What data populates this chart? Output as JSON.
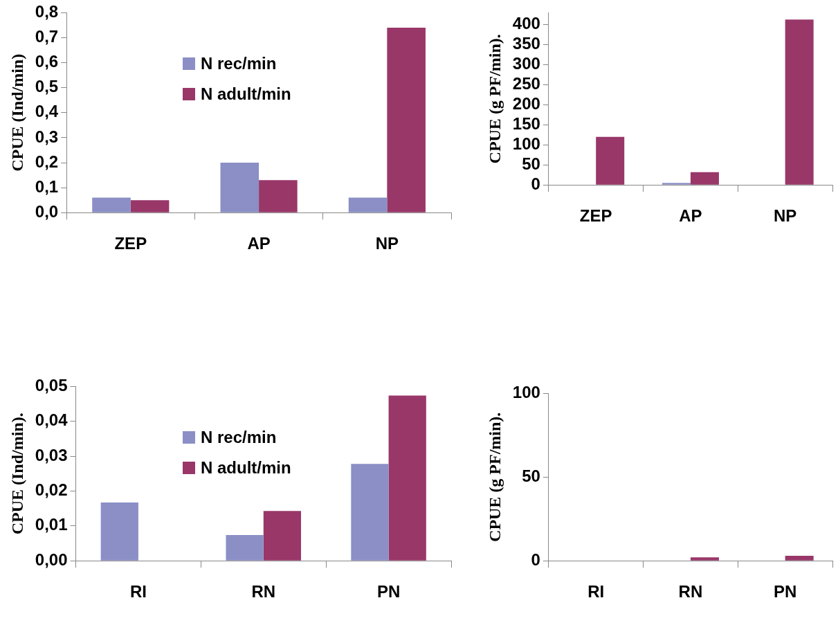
{
  "chart_data": [
    {
      "type": "bar",
      "ylabel": "CPUE (Ind/min)",
      "categories": [
        "ZEP",
        "AP",
        "NP"
      ],
      "series": [
        {
          "name": "N rec/min",
          "color": "#8b8fc6",
          "values": [
            0.06,
            0.2,
            0.06
          ]
        },
        {
          "name": "N adult/min",
          "color": "#993769",
          "values": [
            0.05,
            0.13,
            0.74
          ]
        }
      ],
      "ylim": [
        0,
        0.8
      ],
      "yticks": [
        {
          "value": 0,
          "label": "0,0"
        },
        {
          "value": 0.1,
          "label": "0,1"
        },
        {
          "value": 0.2,
          "label": "0,2"
        },
        {
          "value": 0.3,
          "label": "0,3"
        },
        {
          "value": 0.4,
          "label": "0,4"
        },
        {
          "value": 0.5,
          "label": "0,5"
        },
        {
          "value": 0.6,
          "label": "0,6"
        },
        {
          "value": 0.7,
          "label": "0,7"
        },
        {
          "value": 0.8,
          "label": "0,8"
        }
      ],
      "grid": false,
      "legend": "top"
    },
    {
      "type": "bar",
      "ylabel": "CPUE (g PF/min).",
      "categories": [
        "ZEP",
        "AP",
        "NP"
      ],
      "series": [
        {
          "color": "#8b8fc6",
          "values": [
            0,
            5,
            0
          ]
        },
        {
          "color": "#993769",
          "values": [
            120,
            32,
            413
          ]
        }
      ],
      "ylim": [
        0,
        430
      ],
      "yticks": [
        0,
        50,
        100,
        150,
        200,
        250,
        300,
        350,
        400
      ],
      "grid": false,
      "legend": false
    },
    {
      "type": "bar",
      "ylabel": "CPUE (Ind/min).",
      "categories": [
        "RI",
        "RN",
        "PN"
      ],
      "series": [
        {
          "name": "N rec/min",
          "color": "#8b8fc6",
          "values": [
            0.0167,
            0.0074,
            0.0278
          ]
        },
        {
          "name": "N adult/min",
          "color": "#993769",
          "values": [
            null,
            0.0143,
            0.0474
          ]
        }
      ],
      "ylim": [
        0,
        0.05
      ],
      "yticks": [
        {
          "value": 0,
          "label": "0,00"
        },
        {
          "value": 0.01,
          "label": "0,01"
        },
        {
          "value": 0.02,
          "label": "0,02"
        },
        {
          "value": 0.03,
          "label": "0,03"
        },
        {
          "value": 0.04,
          "label": "0,04"
        },
        {
          "value": 0.05,
          "label": "0,05"
        }
      ],
      "grid": false,
      "legend": "top"
    },
    {
      "type": "bar",
      "ylabel": "CPUE (g PF/min).",
      "categories": [
        "RI",
        "RN",
        "PN"
      ],
      "series": [
        {
          "color": "#8b8fc6",
          "values": [
            0,
            0,
            0
          ]
        },
        {
          "color": "#993769",
          "values": [
            0,
            2,
            3
          ]
        }
      ],
      "ylim": [
        0,
        100
      ],
      "yticks": [
        0,
        50,
        100
      ],
      "grid": false,
      "legend": false
    }
  ]
}
